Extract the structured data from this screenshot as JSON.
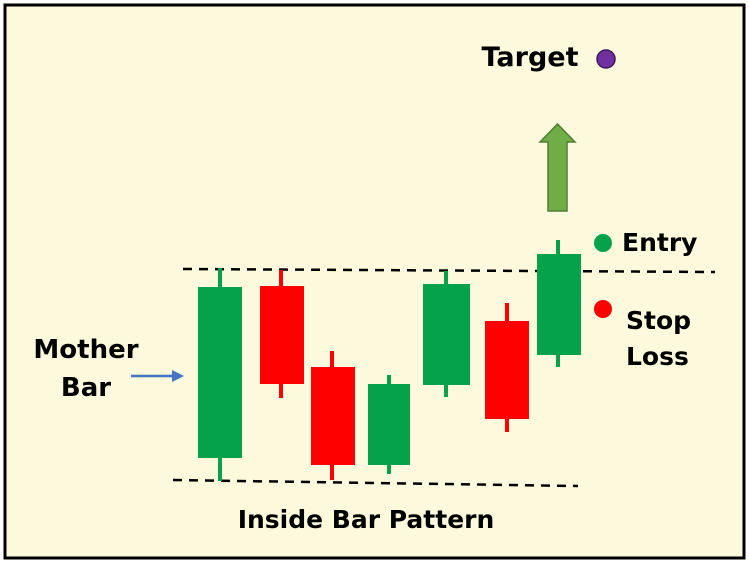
{
  "title": "Inside Bar Pattern",
  "mother_bar_label": [
    "Mother",
    "Bar"
  ],
  "target_label": "Target",
  "entry_label": "Entry",
  "stop_loss_label": [
    "Stop",
    "Loss"
  ],
  "colors": {
    "background": "#fdf9dc",
    "border": "#000000",
    "bullish": "#05a24b",
    "bearish": "#fe0000",
    "target_dot": "#7030a0",
    "entry_dot": "#05a24b",
    "stop_dot": "#fe0000",
    "arrow_up": "#70ad47",
    "arrow_right": "#4472c4"
  },
  "icons": {
    "target": "target-marker-icon",
    "entry": "entry-marker-icon",
    "stop_loss": "stop-loss-marker-icon",
    "breakout": "up-arrow-icon",
    "mother_bar_pointer": "right-arrow-icon"
  },
  "candles": [
    {
      "id": "mother-bar",
      "direction": "bullish"
    },
    {
      "id": "candle-2",
      "direction": "bearish"
    },
    {
      "id": "candle-3",
      "direction": "bearish"
    },
    {
      "id": "candle-4",
      "direction": "bullish"
    },
    {
      "id": "candle-5",
      "direction": "bullish"
    },
    {
      "id": "candle-6",
      "direction": "bearish"
    },
    {
      "id": "breakout-candle",
      "direction": "bullish"
    }
  ]
}
